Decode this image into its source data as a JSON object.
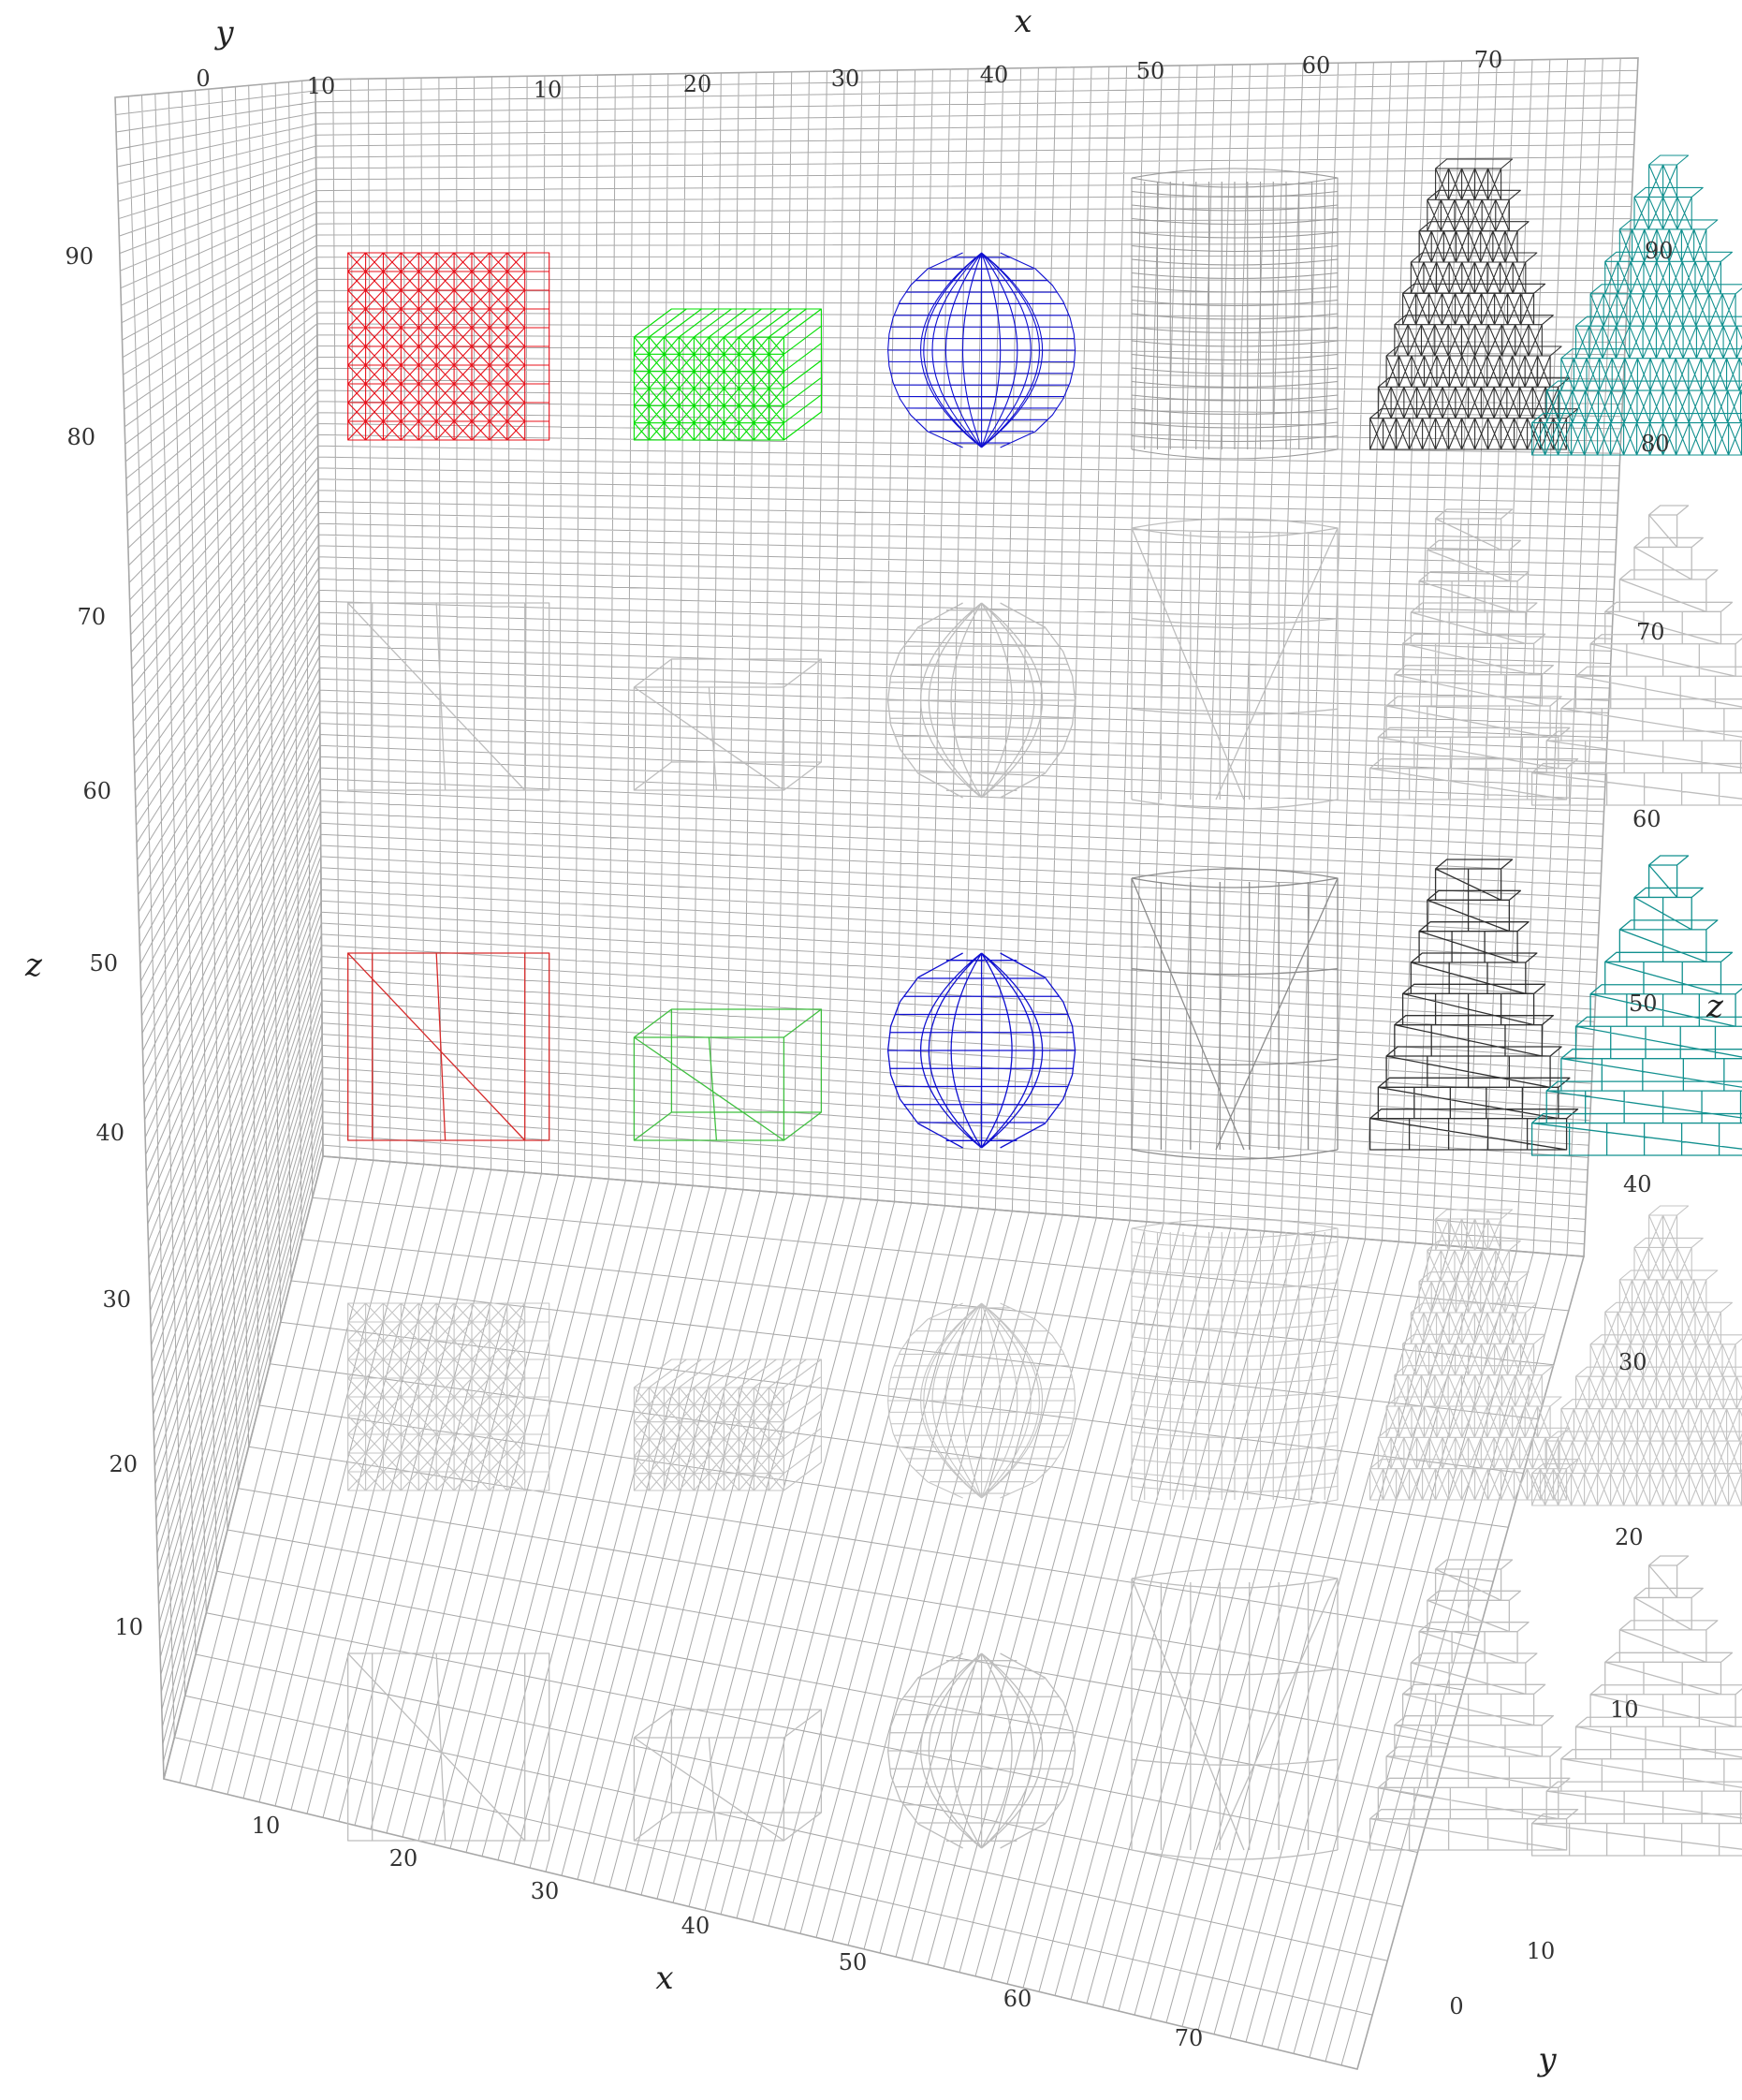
{
  "chart_data": {
    "type": "wireframe-3d",
    "title": "",
    "axes": {
      "x": {
        "label": "x",
        "range": [
          0,
          75
        ],
        "ticks": [
          10,
          20,
          30,
          40,
          50,
          60,
          70
        ]
      },
      "y": {
        "label": "y",
        "range": [
          0,
          15
        ],
        "ticks": [
          0,
          10
        ]
      },
      "z": {
        "label": "z",
        "range": [
          0,
          97
        ],
        "ticks": [
          10,
          20,
          30,
          40,
          50,
          60,
          70,
          80,
          90
        ]
      }
    },
    "grid": true,
    "legend": "none",
    "shape_types": [
      "box",
      "flat-box",
      "sphere",
      "cylinder",
      "stepped-cone",
      "stepped-pyramid"
    ],
    "shape_x_centers": [
      14,
      28,
      42,
      55,
      67,
      77
    ],
    "rows": [
      {
        "z_base": 80,
        "style": "dense",
        "colors": [
          "#e8101a",
          "#00e000",
          "#1010d0",
          "#9a9a9a",
          "#303030",
          "#12908f"
        ]
      },
      {
        "z_base": 60,
        "style": "sparse",
        "colors": [
          "#bdbdbd",
          "#bdbdbd",
          "#bdbdbd",
          "#bdbdbd",
          "#bdbdbd",
          "#bdbdbd"
        ]
      },
      {
        "z_base": 40,
        "style": "sparse",
        "colors": [
          "#d62a2a",
          "#3fbf3f",
          "#1010d0",
          "#8c8c8c",
          "#303030",
          "#12908f"
        ]
      },
      {
        "z_base": 20,
        "style": "dense",
        "colors": [
          "#c4c4c4",
          "#c4c4c4",
          "#c4c4c4",
          "#c4c4c4",
          "#c4c4c4",
          "#c4c4c4"
        ]
      },
      {
        "z_base": 0,
        "style": "sparse",
        "colors": [
          "#bdbdbd",
          "#bdbdbd",
          "#bdbdbd",
          "#bdbdbd",
          "#bdbdbd",
          "#bdbdbd"
        ]
      }
    ]
  },
  "labels": {
    "x_top": "x",
    "y_top": "y",
    "x_bottom": "x",
    "y_bottom": "y",
    "z_left": "z",
    "z_right": "z"
  },
  "ticks": {
    "top_x": [
      "10",
      "20",
      "30",
      "40",
      "50",
      "60",
      "70"
    ],
    "top_y": [
      "0",
      "10"
    ],
    "bottom_x": [
      "10",
      "20",
      "30",
      "40",
      "50",
      "60",
      "70"
    ],
    "bottom_y": [
      "10",
      "0"
    ],
    "left_z": [
      "90",
      "80",
      "70",
      "60",
      "50",
      "40",
      "30",
      "20",
      "10"
    ],
    "right_z": [
      "90",
      "80",
      "70",
      "60",
      "50",
      "40",
      "30",
      "20",
      "10"
    ]
  },
  "colors": {
    "grid": "#a8a8a8",
    "background": "#ffffff"
  }
}
